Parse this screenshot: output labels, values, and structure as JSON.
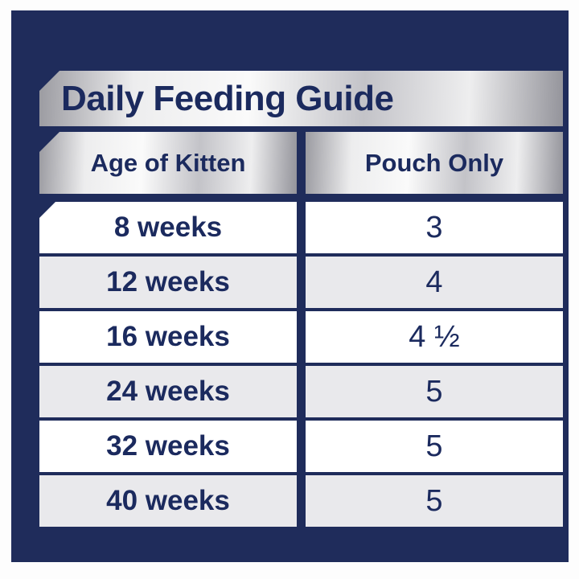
{
  "title": "Daily Feeding Guide",
  "table": {
    "columns": [
      "Age of Kitten",
      "Pouch Only"
    ],
    "rows": [
      {
        "age": "8 weeks",
        "pouches": "3"
      },
      {
        "age": "12 weeks",
        "pouches": "4"
      },
      {
        "age": "16 weeks",
        "pouches": "4 ½"
      },
      {
        "age": "24 weeks",
        "pouches": "5"
      },
      {
        "age": "32 weeks",
        "pouches": "5"
      },
      {
        "age": "40 weeks",
        "pouches": "5"
      }
    ]
  },
  "chart_data": {
    "type": "table",
    "title": "Daily Feeding Guide",
    "columns": [
      "Age of Kitten",
      "Pouch Only"
    ],
    "rows": [
      [
        "8 weeks",
        "3"
      ],
      [
        "12 weeks",
        "4"
      ],
      [
        "16 weeks",
        "4 ½"
      ],
      [
        "24 weeks",
        "5"
      ],
      [
        "32 weeks",
        "5"
      ],
      [
        "40 weeks",
        "5"
      ]
    ]
  },
  "colors": {
    "panel_navy": "#1f2c5b",
    "text_navy": "#1b2a5e",
    "row_white": "#ffffff",
    "row_alt_gray": "#e9e9ec",
    "silver_light": "#fafafa",
    "silver_dark": "#94949b",
    "page_background": "#fdfdfd"
  }
}
